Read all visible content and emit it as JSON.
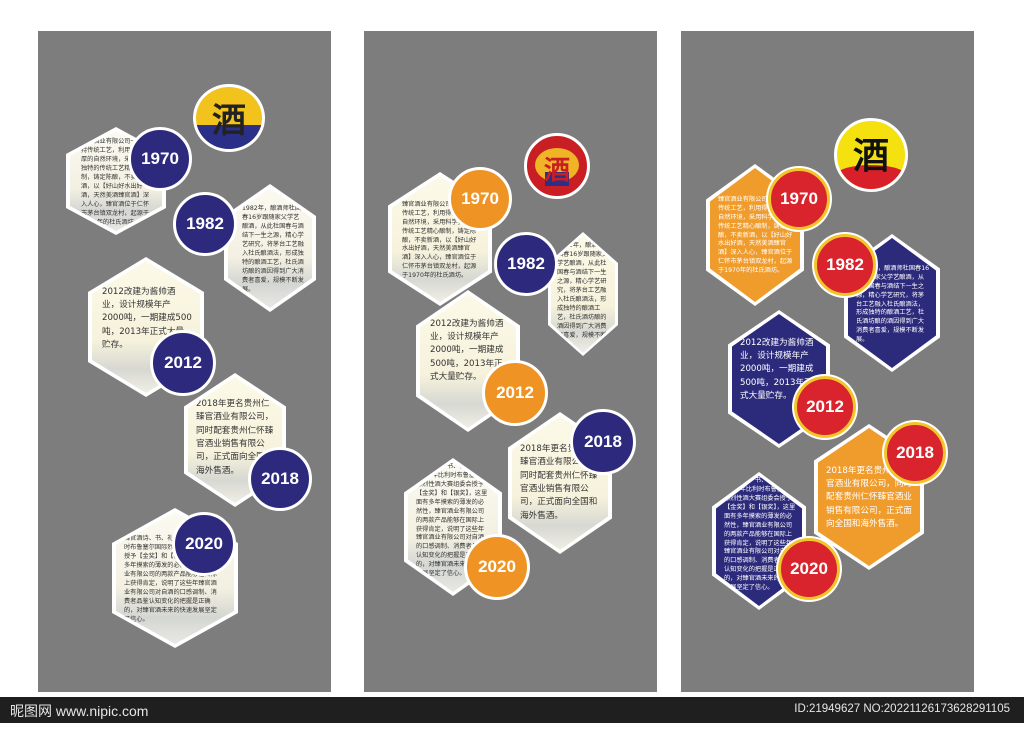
{
  "footer": {
    "site": "昵图网 www.nipic.com",
    "id_text": "ID:21949627 NO:20221126173628291105"
  },
  "colors": {
    "panel": "#7d7d7d",
    "navy": "#2d2a7e",
    "orange": "#ef9424",
    "red": "#d9232d",
    "gold": "#f2c52b"
  },
  "logos": {
    "char": "酒"
  },
  "entries": {
    "e1970": "臻官酒业有限公司一定坚持传统工艺，利用得天独厚的自然环境，采用科学独特的传统工艺精心酿制，铸定陈酿，不卖新酒，以【好山好水出好酒，天然美酒臻官酒】深入人心，臻官酒位于仁怀市茅台镇双龙村，起源于1970年的杜氏酒坊。",
    "e1982": "1982年，酿酒师杜国春16岁跟随家父学艺酿酒，从此杜国春与酒结下一生之源，精心学艺研究，将茅台工艺融入杜氏酿酒法，形成独特的酿酒工艺，杜氏酒坊酿的酒因得到广大消费者喜爱，规模不断发展。",
    "e2012": "2012改建为酱帅酒业，设计规模年产2000吨，一期建成500吨，2013年正式大量贮存。",
    "e2018a": "2018年更名贵州仁臻官酒业有限公司，同时配套贵州仁怀臻官酒业销售有限公司，正式面向全国和海外售酒。",
    "e2018b": "2018年更名贵州仁臻官酒业有限公司，同时配套贵州仁怀臻官酒业销售有限公司，正式面向全国和海外售酒。",
    "e2020": "臻官酒诗、书、礼分别2020年比利时布鲁塞尔国际烈性酒大赛组委会授予【金奖】和【银奖】，这里面有多年摸索的薄发的必然性，臻官酒业有限公司的两款产品能够在国际上获得肯定，说明了这些年臻官酒业有限公司对自酒的口感调制、消费者品鉴认知变化的把握是正确的，对臻官酒未来的快速发展坚定了信心。"
  },
  "years": {
    "y1970": "1970",
    "y1982": "1982",
    "y2012": "2012",
    "y2018": "2018",
    "y2020": "2020"
  }
}
